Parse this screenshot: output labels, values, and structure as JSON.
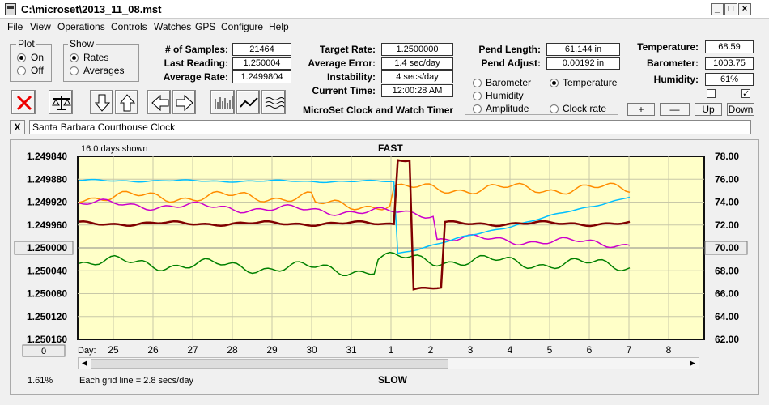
{
  "window": {
    "title": "C:\\microset\\2013_11_08.mst"
  },
  "menu": [
    "File",
    "View",
    "Operations",
    "Controls",
    "Watches",
    "GPS",
    "Configure",
    "Help"
  ],
  "plot_group": {
    "title": "Plot",
    "options": [
      "On",
      "Off"
    ],
    "selected": "On"
  },
  "show_group": {
    "title": "Show",
    "options": [
      "Rates",
      "Averages"
    ],
    "selected": "Rates"
  },
  "stats": [
    {
      "label": "# of Samples:",
      "value": "21464"
    },
    {
      "label": "Last Reading:",
      "value": "1.250004"
    },
    {
      "label": "Average Rate:",
      "value": "1.2499804"
    }
  ],
  "rates": [
    {
      "label": "Target Rate:",
      "value": "1.2500000"
    },
    {
      "label": "Average Error:",
      "value": "1.4 sec/day"
    },
    {
      "label": "Instability:",
      "value": "4 secs/day"
    },
    {
      "label": "Current Time:",
      "value": "12:00:28 AM"
    }
  ],
  "pendulum": [
    {
      "label": "Pend Length:",
      "value": "61.144 in"
    },
    {
      "label": "Pend Adjust:",
      "value": "0.00192 in"
    }
  ],
  "environment": [
    {
      "label": "Temperature:",
      "value": "68.59"
    },
    {
      "label": "Barometer:",
      "value": "1003.75"
    },
    {
      "label": "Humidity:",
      "value": "61%"
    }
  ],
  "series_selector": [
    {
      "label": "Barometer",
      "color": "#ff8c00",
      "selected": false
    },
    {
      "label": "Temperature",
      "color": "#008000",
      "selected": true
    },
    {
      "label": "Humidity",
      "color": "#cc00cc",
      "selected": false
    },
    {
      "label": "Clock rate",
      "color": "#000000",
      "selected": false
    },
    {
      "label": "Amplitude",
      "color": "#00bfff",
      "selected": false
    }
  ],
  "app_caption": "MicroSet Clock and Watch Timer",
  "adjust_buttons": [
    "+",
    "—",
    "Up",
    "Down"
  ],
  "clock_name": "Santa Barbara Courthouse Clock",
  "close_label": "X",
  "status": {
    "zoom_percent": "1.61%",
    "grid_note": "Each grid line = 2.8 secs/day",
    "left_button": "0"
  },
  "chart_data": {
    "type": "line",
    "title": "FAST",
    "bottom_label": "SLOW",
    "days_shown": "16.0 days shown",
    "x_label": "Day:",
    "x_ticks": [
      "25",
      "26",
      "27",
      "28",
      "29",
      "30",
      "31",
      "1",
      "2",
      "3",
      "4",
      "5",
      "6",
      "7",
      "8"
    ],
    "left_axis": [
      "1.249840",
      "1.249880",
      "1.249920",
      "1.249960",
      "1.250000",
      "1.250040",
      "1.250080",
      "1.250120",
      "1.250160"
    ],
    "left_highlight": "1.250000",
    "right_axis": [
      "78.00",
      "76.00",
      "74.00",
      "72.00",
      "70.00",
      "68.00",
      "66.00",
      "64.00",
      "62.00"
    ],
    "right_highlight": "70.00",
    "right_range": [
      62,
      78
    ],
    "series": [
      {
        "name": "Barometer",
        "color": "#ff8c00"
      },
      {
        "name": "Temperature",
        "color": "#008000"
      },
      {
        "name": "Humidity",
        "color": "#cc00cc"
      },
      {
        "name": "Amplitude",
        "color": "#00bfff"
      },
      {
        "name": "Clock rate",
        "color": "#800000"
      }
    ]
  }
}
